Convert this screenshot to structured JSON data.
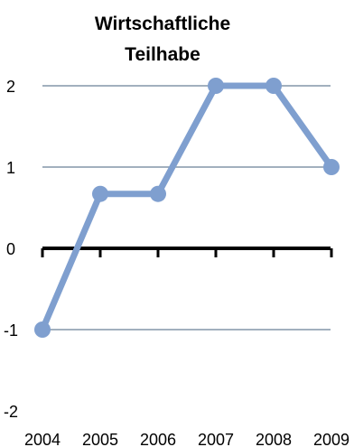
{
  "chart_data": {
    "type": "line",
    "title_lines": [
      "Wirtschaftliche",
      "Teilhabe"
    ],
    "x": [
      "2004",
      "2005",
      "2006",
      "2007",
      "2008",
      "2009"
    ],
    "series": [
      {
        "values": [
          -1,
          0.67,
          0.67,
          2,
          2,
          1
        ]
      }
    ],
    "ylim": [
      -2,
      2
    ],
    "y_ticks": [
      "-2",
      "-1",
      "0",
      "1",
      "2"
    ],
    "grid": true,
    "legend": "none",
    "colors": {
      "line": "#7f9fcf",
      "grid": "#8496a8",
      "zero_axis": "#000000"
    }
  }
}
